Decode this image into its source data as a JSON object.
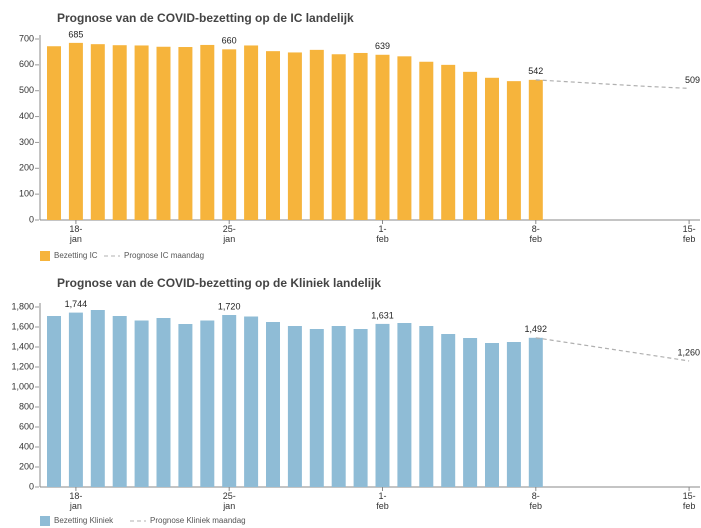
{
  "chart_data": [
    {
      "type": "bar",
      "title": "Prognose van de COVID-bezetting op de IC landelijk",
      "categories": [
        null,
        "18-jan",
        null,
        null,
        null,
        null,
        null,
        null,
        "25-jan",
        null,
        null,
        null,
        null,
        null,
        null,
        "1-feb",
        null,
        null,
        null,
        null,
        null,
        null,
        "8-feb",
        null,
        null,
        null,
        null,
        null,
        null,
        "15-feb"
      ],
      "series": [
        {
          "name": "Bezetting IC",
          "color": "#f6b43c",
          "values": [
            672,
            685,
            680,
            676,
            675,
            670,
            669,
            677,
            660,
            675,
            653,
            648,
            658,
            641,
            646,
            639,
            633,
            612,
            600,
            573,
            550,
            537,
            542,
            null,
            null,
            null,
            null,
            null,
            null,
            null
          ],
          "value_labels": [
            null,
            "685",
            null,
            null,
            null,
            null,
            null,
            null,
            "660",
            null,
            null,
            null,
            null,
            null,
            null,
            "639",
            null,
            null,
            null,
            null,
            null,
            null,
            "542",
            null,
            null,
            null,
            null,
            null,
            null,
            null
          ]
        },
        {
          "name": "Prognose IC maandag",
          "color": "#b0b0b0",
          "dashed": true,
          "values": [
            null,
            null,
            null,
            null,
            null,
            null,
            null,
            null,
            null,
            null,
            null,
            null,
            null,
            null,
            null,
            null,
            null,
            null,
            null,
            null,
            null,
            null,
            542,
            537,
            532,
            527,
            522,
            517,
            513,
            509
          ],
          "value_labels": [
            null,
            null,
            null,
            null,
            null,
            null,
            null,
            null,
            null,
            null,
            null,
            null,
            null,
            null,
            null,
            null,
            null,
            null,
            null,
            null,
            null,
            null,
            null,
            null,
            null,
            null,
            null,
            null,
            null,
            "509"
          ]
        }
      ],
      "ylim": [
        0,
        700
      ],
      "yticks": [
        0,
        100,
        200,
        300,
        400,
        500,
        600,
        700
      ],
      "legend": "bottom-left"
    },
    {
      "type": "bar",
      "title": "Prognose van de COVID-bezetting op de Kliniek landelijk",
      "categories": [
        null,
        "18-jan",
        null,
        null,
        null,
        null,
        null,
        null,
        "25-jan",
        null,
        null,
        null,
        null,
        null,
        null,
        "1-feb",
        null,
        null,
        null,
        null,
        null,
        null,
        "8-feb",
        null,
        null,
        null,
        null,
        null,
        null,
        "15-feb"
      ],
      "series": [
        {
          "name": "Bezetting Kliniek",
          "color": "#8fbcd6",
          "values": [
            1710,
            1744,
            1770,
            1710,
            1665,
            1690,
            1630,
            1665,
            1720,
            1705,
            1650,
            1610,
            1580,
            1610,
            1580,
            1631,
            1640,
            1610,
            1530,
            1490,
            1440,
            1450,
            1492,
            null,
            null,
            null,
            null,
            null,
            null,
            null
          ],
          "value_labels": [
            null,
            "1,744",
            null,
            null,
            null,
            null,
            null,
            null,
            "1,720",
            null,
            null,
            null,
            null,
            null,
            null,
            "1,631",
            null,
            null,
            null,
            null,
            null,
            null,
            "1,492",
            null,
            null,
            null,
            null,
            null,
            null,
            null
          ]
        },
        {
          "name": "Prognose Kliniek maandag",
          "color": "#b0b0b0",
          "dashed": true,
          "values": [
            null,
            null,
            null,
            null,
            null,
            null,
            null,
            null,
            null,
            null,
            null,
            null,
            null,
            null,
            null,
            null,
            null,
            null,
            null,
            null,
            null,
            null,
            1492,
            1459,
            1426,
            1393,
            1360,
            1327,
            1294,
            1260
          ],
          "value_labels": [
            null,
            null,
            null,
            null,
            null,
            null,
            null,
            null,
            null,
            null,
            null,
            null,
            null,
            null,
            null,
            null,
            null,
            null,
            null,
            null,
            null,
            null,
            null,
            null,
            null,
            null,
            null,
            null,
            null,
            "1,260"
          ]
        }
      ],
      "ylim": [
        0,
        1800
      ],
      "yticks": [
        0,
        {
          "value": 200,
          "label": "200"
        },
        400,
        600,
        800,
        {
          "value": 1000,
          "label": "1,000"
        },
        {
          "value": 1200,
          "label": "1,200"
        },
        {
          "value": 1400,
          "label": "1,400"
        },
        {
          "value": 1600,
          "label": "1,600"
        },
        {
          "value": 1800,
          "label": "1,800"
        }
      ],
      "legend": "bottom-left"
    }
  ]
}
